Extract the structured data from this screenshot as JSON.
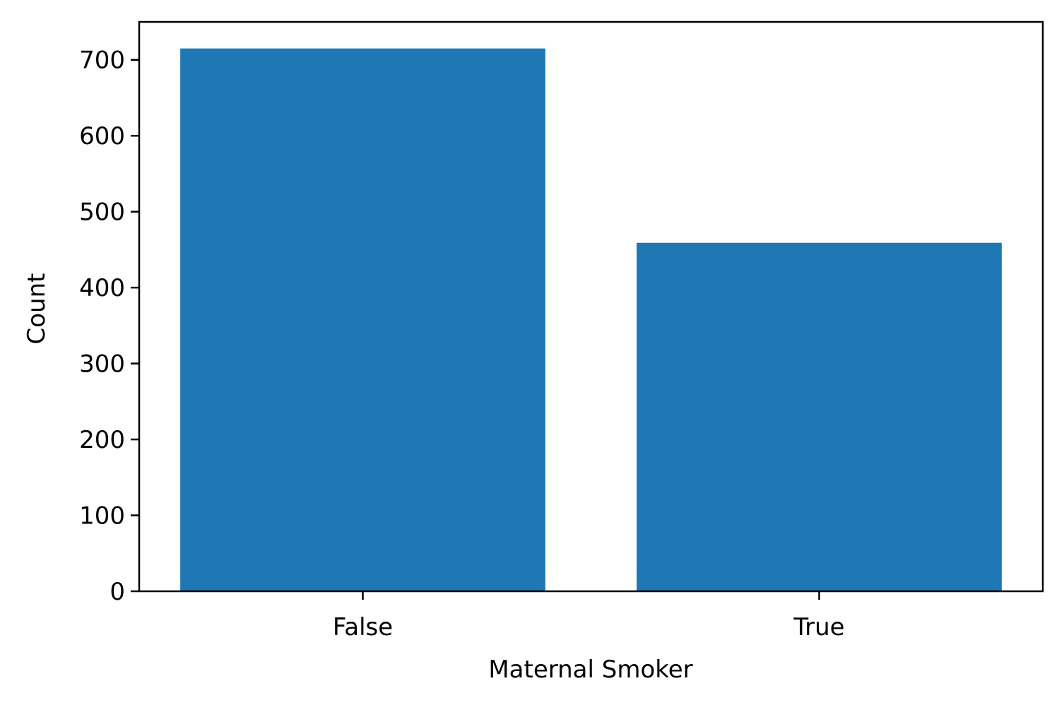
{
  "chart_data": {
    "type": "bar",
    "categories": [
      "False",
      "True"
    ],
    "values": [
      715,
      459
    ],
    "title": "",
    "xlabel": "Maternal Smoker",
    "ylabel": "Count",
    "ylim": [
      0,
      750
    ],
    "yticks": [
      0,
      100,
      200,
      300,
      400,
      500,
      600,
      700
    ],
    "grid": false,
    "bar_color": "#1f77b4"
  }
}
